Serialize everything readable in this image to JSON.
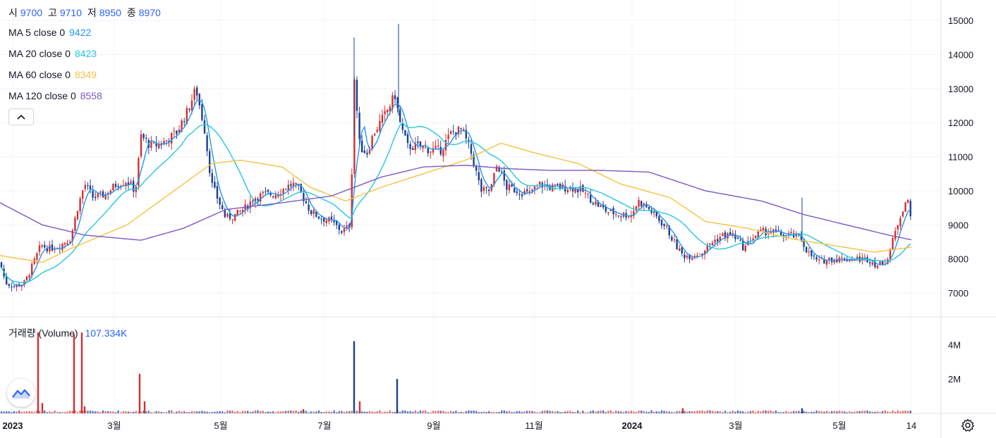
{
  "ohlc": {
    "open_label": "시",
    "open": "9700",
    "high_label": "고",
    "high": "9710",
    "low_label": "저",
    "low": "8950",
    "close_label": "종",
    "close": "8970",
    "value_color": "#2962ff"
  },
  "ma_legend": [
    {
      "label": "MA 5 close 0",
      "value": "9422",
      "color": "#2196f3"
    },
    {
      "label": "MA 20 close 0",
      "value": "8423",
      "color": "#26c6da"
    },
    {
      "label": "MA 60 close 0",
      "value": "8349",
      "color": "#f5c242"
    },
    {
      "label": "MA 120 close 0",
      "value": "8558",
      "color": "#7e57c2"
    }
  ],
  "volume_legend": {
    "label": "거래량 (Volume)",
    "value": "107.334K",
    "value_color": "#2962ff"
  },
  "icons": {
    "collapse": "chevron-up-icon",
    "logo": "tradingview-logo-icon",
    "settings": "gear-icon"
  },
  "colors": {
    "up": "#d32f2f",
    "down": "#1e3f8f"
  },
  "chart_data": {
    "type": "candlestick",
    "price_axis": {
      "ticks": [
        7000,
        8000,
        9000,
        10000,
        11000,
        12000,
        13000,
        14000,
        15000
      ],
      "tick_labels": [
        "7000",
        "8000",
        "9000",
        "10000",
        "11000",
        "12000",
        "13000",
        "14000",
        "15000"
      ],
      "range": [
        6300,
        15600
      ]
    },
    "volume_axis": {
      "ticks": [
        2000000,
        4000000
      ],
      "tick_labels": [
        "2M",
        "4M"
      ],
      "range": [
        0,
        5200000
      ]
    },
    "x_labels": [
      "2023",
      "3월",
      "5월",
      "7월",
      "9월",
      "11월",
      "2024",
      "3월",
      "5월",
      "14"
    ],
    "x_label_bold": [
      true,
      false,
      false,
      false,
      false,
      false,
      true,
      false,
      false,
      false
    ],
    "date_range": [
      "2023-01-02",
      "2024-06-14"
    ],
    "close_path": [
      [
        0,
        7900
      ],
      [
        8,
        7300
      ],
      [
        20,
        7200
      ],
      [
        35,
        7300
      ],
      [
        48,
        7900
      ],
      [
        58,
        8400
      ],
      [
        70,
        8300
      ],
      [
        85,
        8400
      ],
      [
        100,
        8600
      ],
      [
        110,
        9500
      ],
      [
        120,
        10200
      ],
      [
        132,
        9800
      ],
      [
        150,
        9900
      ],
      [
        165,
        10200
      ],
      [
        180,
        10300
      ],
      [
        192,
        10000
      ],
      [
        200,
        11600
      ],
      [
        215,
        11300
      ],
      [
        230,
        11400
      ],
      [
        250,
        11700
      ],
      [
        265,
        12300
      ],
      [
        278,
        13000
      ],
      [
        290,
        11800
      ],
      [
        300,
        10200
      ],
      [
        310,
        9700
      ],
      [
        320,
        9200
      ],
      [
        335,
        9300
      ],
      [
        348,
        9500
      ],
      [
        360,
        9800
      ],
      [
        375,
        9900
      ],
      [
        390,
        9900
      ],
      [
        405,
        10100
      ],
      [
        415,
        10200
      ],
      [
        425,
        10000
      ],
      [
        440,
        9400
      ],
      [
        455,
        9200
      ],
      [
        470,
        9100
      ],
      [
        485,
        8800
      ],
      [
        497,
        9000
      ],
      [
        502,
        13400
      ],
      [
        510,
        11300
      ],
      [
        520,
        11100
      ],
      [
        530,
        11700
      ],
      [
        545,
        12200
      ],
      [
        560,
        12800
      ],
      [
        568,
        11900
      ],
      [
        578,
        11300
      ],
      [
        595,
        11300
      ],
      [
        610,
        11200
      ],
      [
        625,
        11200
      ],
      [
        640,
        11700
      ],
      [
        655,
        11800
      ],
      [
        668,
        11100
      ],
      [
        682,
        10000
      ],
      [
        695,
        10000
      ],
      [
        705,
        10800
      ],
      [
        718,
        10100
      ],
      [
        735,
        10000
      ],
      [
        750,
        9900
      ],
      [
        765,
        10200
      ],
      [
        780,
        10100
      ],
      [
        795,
        10100
      ],
      [
        810,
        10100
      ],
      [
        825,
        10000
      ],
      [
        840,
        9700
      ],
      [
        860,
        9400
      ],
      [
        880,
        9300
      ],
      [
        895,
        9300
      ],
      [
        905,
        9700
      ],
      [
        918,
        9500
      ],
      [
        932,
        9200
      ],
      [
        945,
        8900
      ],
      [
        958,
        8400
      ],
      [
        968,
        8100
      ],
      [
        980,
        8100
      ],
      [
        995,
        8200
      ],
      [
        1010,
        8500
      ],
      [
        1025,
        8700
      ],
      [
        1040,
        8700
      ],
      [
        1055,
        8300
      ],
      [
        1065,
        8600
      ],
      [
        1080,
        8800
      ],
      [
        1095,
        8800
      ],
      [
        1110,
        8700
      ],
      [
        1122,
        8700
      ],
      [
        1135,
        8600
      ],
      [
        1145,
        8200
      ],
      [
        1160,
        7900
      ],
      [
        1175,
        8000
      ],
      [
        1190,
        8000
      ],
      [
        1210,
        8000
      ],
      [
        1230,
        8000
      ],
      [
        1245,
        7800
      ],
      [
        1258,
        8000
      ],
      [
        1268,
        8700
      ],
      [
        1278,
        9400
      ],
      [
        1286,
        9800
      ],
      [
        1293,
        8970
      ]
    ],
    "series": [
      {
        "name": "MA 5 close 0",
        "color": "#2196f3",
        "last": 9422
      },
      {
        "name": "MA 20 close 0",
        "color": "#26c6da",
        "last": 8423
      },
      {
        "name": "MA 60 close 0",
        "color": "#f5c242",
        "last": 8349
      },
      {
        "name": "MA 120 close 0",
        "color": "#7e57c2",
        "last": 8558
      }
    ],
    "ma120_path": [
      [
        0,
        9650
      ],
      [
        60,
        9000
      ],
      [
        120,
        8700
      ],
      [
        200,
        8550
      ],
      [
        260,
        8900
      ],
      [
        320,
        9450
      ],
      [
        400,
        9650
      ],
      [
        470,
        9850
      ],
      [
        540,
        10400
      ],
      [
        600,
        10700
      ],
      [
        660,
        10750
      ],
      [
        720,
        10650
      ],
      [
        780,
        10600
      ],
      [
        850,
        10600
      ],
      [
        920,
        10550
      ],
      [
        1000,
        10000
      ],
      [
        1080,
        9700
      ],
      [
        1140,
        9300
      ],
      [
        1200,
        9000
      ],
      [
        1260,
        8700
      ],
      [
        1293,
        8558
      ]
    ],
    "ma60_path": [
      [
        0,
        8100
      ],
      [
        60,
        7900
      ],
      [
        100,
        8300
      ],
      [
        180,
        9000
      ],
      [
        240,
        9900
      ],
      [
        300,
        10800
      ],
      [
        340,
        10900
      ],
      [
        400,
        10700
      ],
      [
        440,
        10100
      ],
      [
        490,
        9700
      ],
      [
        540,
        10100
      ],
      [
        600,
        10500
      ],
      [
        660,
        10900
      ],
      [
        710,
        11400
      ],
      [
        760,
        11100
      ],
      [
        820,
        10800
      ],
      [
        880,
        10200
      ],
      [
        950,
        9800
      ],
      [
        1000,
        9100
      ],
      [
        1060,
        8900
      ],
      [
        1120,
        8600
      ],
      [
        1180,
        8400
      ],
      [
        1240,
        8200
      ],
      [
        1293,
        8349
      ]
    ],
    "vol_spikes": [
      [
        54,
        4700000
      ],
      [
        105,
        4600000
      ],
      [
        116,
        4700000
      ],
      [
        198,
        2300000
      ],
      [
        205,
        700000
      ],
      [
        502,
        4200000
      ],
      [
        510,
        700000
      ],
      [
        563,
        2000000
      ],
      [
        1137,
        300000
      ],
      [
        60,
        600000
      ],
      [
        120,
        400000
      ],
      [
        430,
        250000
      ],
      [
        968,
        300000
      ]
    ],
    "price_markers": [
      {
        "x": 1293,
        "value": 8970
      }
    ]
  }
}
